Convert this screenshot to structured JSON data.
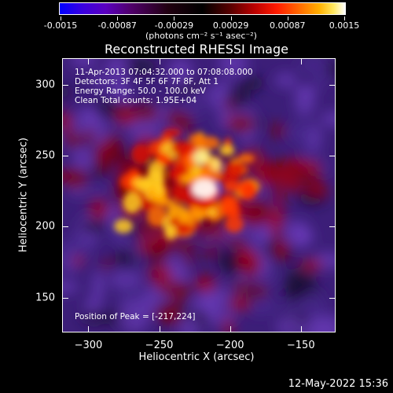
{
  "colorbar": {
    "ticks": [
      "-0.0015",
      "-0.00087",
      "-0.00029",
      "0.00029",
      "0.00087",
      "0.0015"
    ],
    "units": "(photons cm⁻² s⁻¹ asec⁻²)",
    "colormap": [
      "#0000ff",
      "#5a00c0",
      "#200010",
      "#000000",
      "#b80000",
      "#ff6a00",
      "#ffe860",
      "#ffffff"
    ]
  },
  "chart_data": {
    "type": "heatmap",
    "title": "Reconstructed RHESSI Image",
    "xlabel": "Heliocentric X (arcsec)",
    "ylabel": "Heliocentric Y (arcsec)",
    "xlim": [
      -318,
      -126
    ],
    "ylim": [
      126,
      318
    ],
    "x_ticks": [
      "−300",
      "−250",
      "−200",
      "−150"
    ],
    "x_tick_values": [
      -300,
      -250,
      -200,
      -150
    ],
    "y_ticks": [
      "150",
      "200",
      "250",
      "300"
    ],
    "y_tick_values": [
      150,
      200,
      250,
      300
    ],
    "peak": {
      "x": -217,
      "y": 224
    },
    "info_lines": [
      "11-Apr-2013 07:04:32.000 to 07:08:08.000",
      "Detectors: 3F 4F 5F 6F 7F 8F, Att 1",
      "Energy Range: 50.0 - 100.0 keV",
      "Clean      Total counts: 1.95E+04"
    ],
    "peak_label": "Position of Peak = [-217,224]"
  },
  "footer": {
    "date": "12-May-2022 15:36"
  }
}
